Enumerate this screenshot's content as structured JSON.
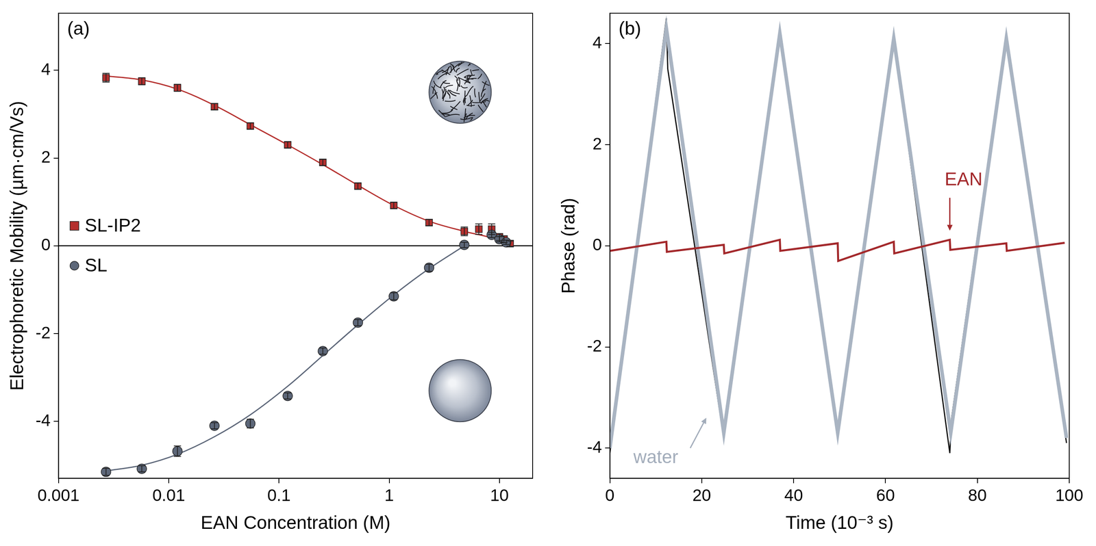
{
  "chart_data": [
    {
      "type": "scatter",
      "title": "(a)",
      "x_label": "EAN Concentration (M)",
      "y_label": "Electrophoretic Mobility (µm·cm/Vs)",
      "log": "x",
      "grid": false,
      "legend": "center left",
      "xlim": [
        0.001,
        20
      ],
      "xticks": [
        0.001,
        0.01,
        0.1,
        1,
        10
      ],
      "ylim": [
        -5.3,
        5.3
      ],
      "yticks": [
        -4,
        -2,
        0,
        2,
        4
      ],
      "hline": 0,
      "series": [
        {
          "name": "SL-IP2",
          "color": "#b5302e",
          "marker": "square",
          "x": [
            0.0027,
            0.0057,
            0.012,
            0.026,
            0.055,
            0.12,
            0.25,
            0.52,
            1.1,
            2.3,
            4.8,
            6.5,
            8.5,
            10,
            11,
            12.5
          ],
          "values": [
            3.83,
            3.75,
            3.6,
            3.17,
            2.73,
            2.3,
            1.9,
            1.36,
            0.92,
            0.53,
            0.33,
            0.38,
            0.38,
            0.2,
            0.15,
            0.05
          ],
          "errors": [
            0.1,
            0.08,
            0.08,
            0.07,
            0.07,
            0.07,
            0.07,
            0.07,
            0.07,
            0.07,
            0.1,
            0.12,
            0.12,
            0.08,
            0.08,
            0.06
          ],
          "fit": {
            "x": [
              0.0027,
              0.0057,
              0.012,
              0.026,
              0.055,
              0.12,
              0.25,
              0.52,
              1.1,
              2.3,
              4.8,
              8,
              12.5
            ],
            "values": [
              3.87,
              3.78,
              3.57,
              3.2,
              2.76,
              2.3,
              1.85,
              1.38,
              0.92,
              0.56,
              0.33,
              0.2,
              0.05
            ]
          }
        },
        {
          "name": "SL",
          "color": "#5d6779",
          "marker": "circle",
          "x": [
            0.0027,
            0.0057,
            0.012,
            0.026,
            0.055,
            0.12,
            0.25,
            0.52,
            1.1,
            2.3,
            4.8,
            8.5,
            10,
            11.5
          ],
          "values": [
            -5.15,
            -5.08,
            -4.68,
            -4.1,
            -4.05,
            -3.42,
            -2.4,
            -1.75,
            -1.15,
            -0.5,
            0.02,
            0.25,
            0.15,
            0.08
          ],
          "errors": [
            0.08,
            0.07,
            0.12,
            0.07,
            0.1,
            0.07,
            0.07,
            0.07,
            0.08,
            0.08,
            0.06,
            0.06,
            0.06,
            0.05
          ],
          "fit": {
            "x": [
              0.0027,
              0.0057,
              0.012,
              0.026,
              0.055,
              0.12,
              0.25,
              0.52,
              1.1,
              2.3,
              4.8
            ],
            "values": [
              -5.13,
              -5.0,
              -4.75,
              -4.35,
              -3.85,
              -3.2,
              -2.5,
              -1.8,
              -1.12,
              -0.52,
              0.0
            ]
          }
        }
      ]
    },
    {
      "type": "line",
      "title": "(b)",
      "x_label": "Time (10⁻³ s)",
      "y_label": "Phase (rad)",
      "grid": false,
      "xlim": [
        0,
        100
      ],
      "xticks": [
        0,
        20,
        40,
        60,
        80,
        100
      ],
      "ylim": [
        -4.6,
        4.6
      ],
      "yticks": [
        -4,
        -2,
        0,
        2,
        4
      ],
      "series": [
        {
          "color": "#111111",
          "x": [
            0,
            12.3,
            12.6,
            24.8,
            37,
            49.6,
            61.8,
            74,
            74.4,
            86.3,
            99.4
          ],
          "values": [
            -4.1,
            4.5,
            3.5,
            -3.8,
            4.2,
            -3.6,
            4.1,
            -4.1,
            -3.4,
            4.2,
            -3.9
          ]
        },
        {
          "color": "#a9b4c2",
          "x": [
            0,
            12.3,
            24.8,
            37,
            49.6,
            61.8,
            74.2,
            86.3,
            99.4
          ],
          "values": [
            -4.0,
            4.3,
            -3.7,
            4.2,
            -3.7,
            4.1,
            -3.7,
            4.1,
            -3.8
          ]
        },
        {
          "color": "#a3282b",
          "x": [
            0,
            12.3,
            12.4,
            24.8,
            24.9,
            37,
            37.1,
            49.6,
            49.7,
            61.8,
            61.9,
            74,
            74.1,
            86.3,
            86.4,
            99
          ],
          "values": [
            -0.1,
            0.08,
            -0.12,
            0.02,
            -0.15,
            0.12,
            -0.1,
            0.05,
            -0.3,
            0.08,
            -0.15,
            0.12,
            -0.08,
            0.05,
            -0.1,
            0.06
          ]
        }
      ],
      "annotations": [
        {
          "text": "EAN",
          "color": "#a3282b"
        },
        {
          "text": "water",
          "color": "#a3adbb"
        }
      ]
    }
  ]
}
